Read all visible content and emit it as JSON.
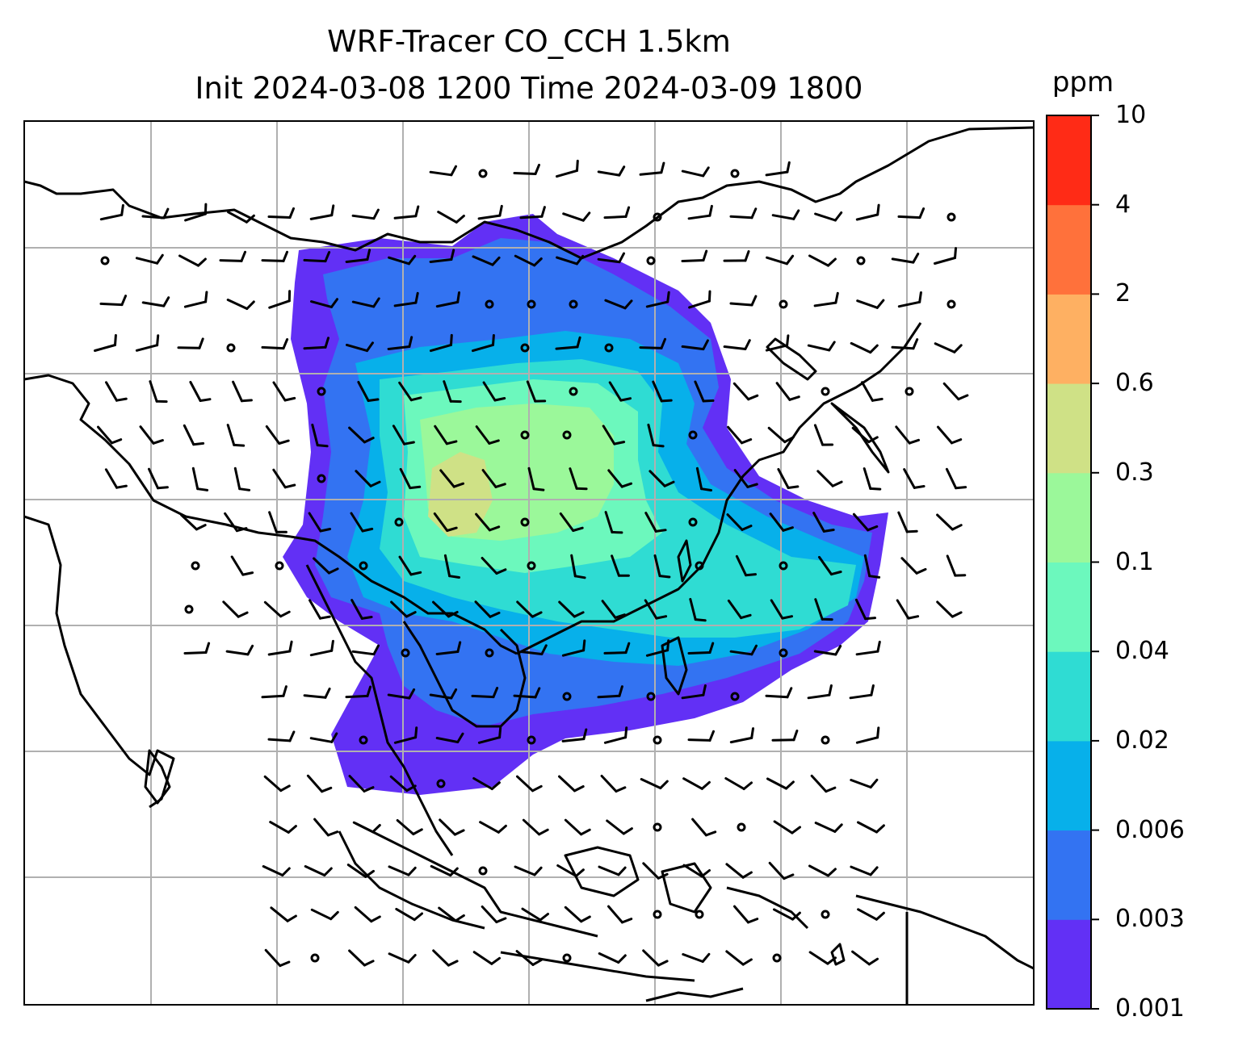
{
  "title": {
    "line1": "WRF-Tracer CO_CCH 1.5km",
    "line2": "Init 2024-03-08 1200 Time 2024-03-09 1800"
  },
  "colorbar": {
    "unit": "ppm",
    "ticks": [
      "0.001",
      "0.003",
      "0.006",
      "0.02",
      "0.04",
      "0.1",
      "0.3",
      "0.6",
      "2",
      "4",
      "10"
    ],
    "colors": [
      "#6230f5",
      "#3373f2",
      "#07b0ea",
      "#2fdcd3",
      "#6cf8bd",
      "#9bf89a",
      "#cfe186",
      "#feb062",
      "#ff713b",
      "#ff2b16"
    ]
  },
  "map": {
    "gridline_color": "#b0b0b0",
    "coastline_color": "#000000",
    "wind_barb_color": "#000000"
  }
}
